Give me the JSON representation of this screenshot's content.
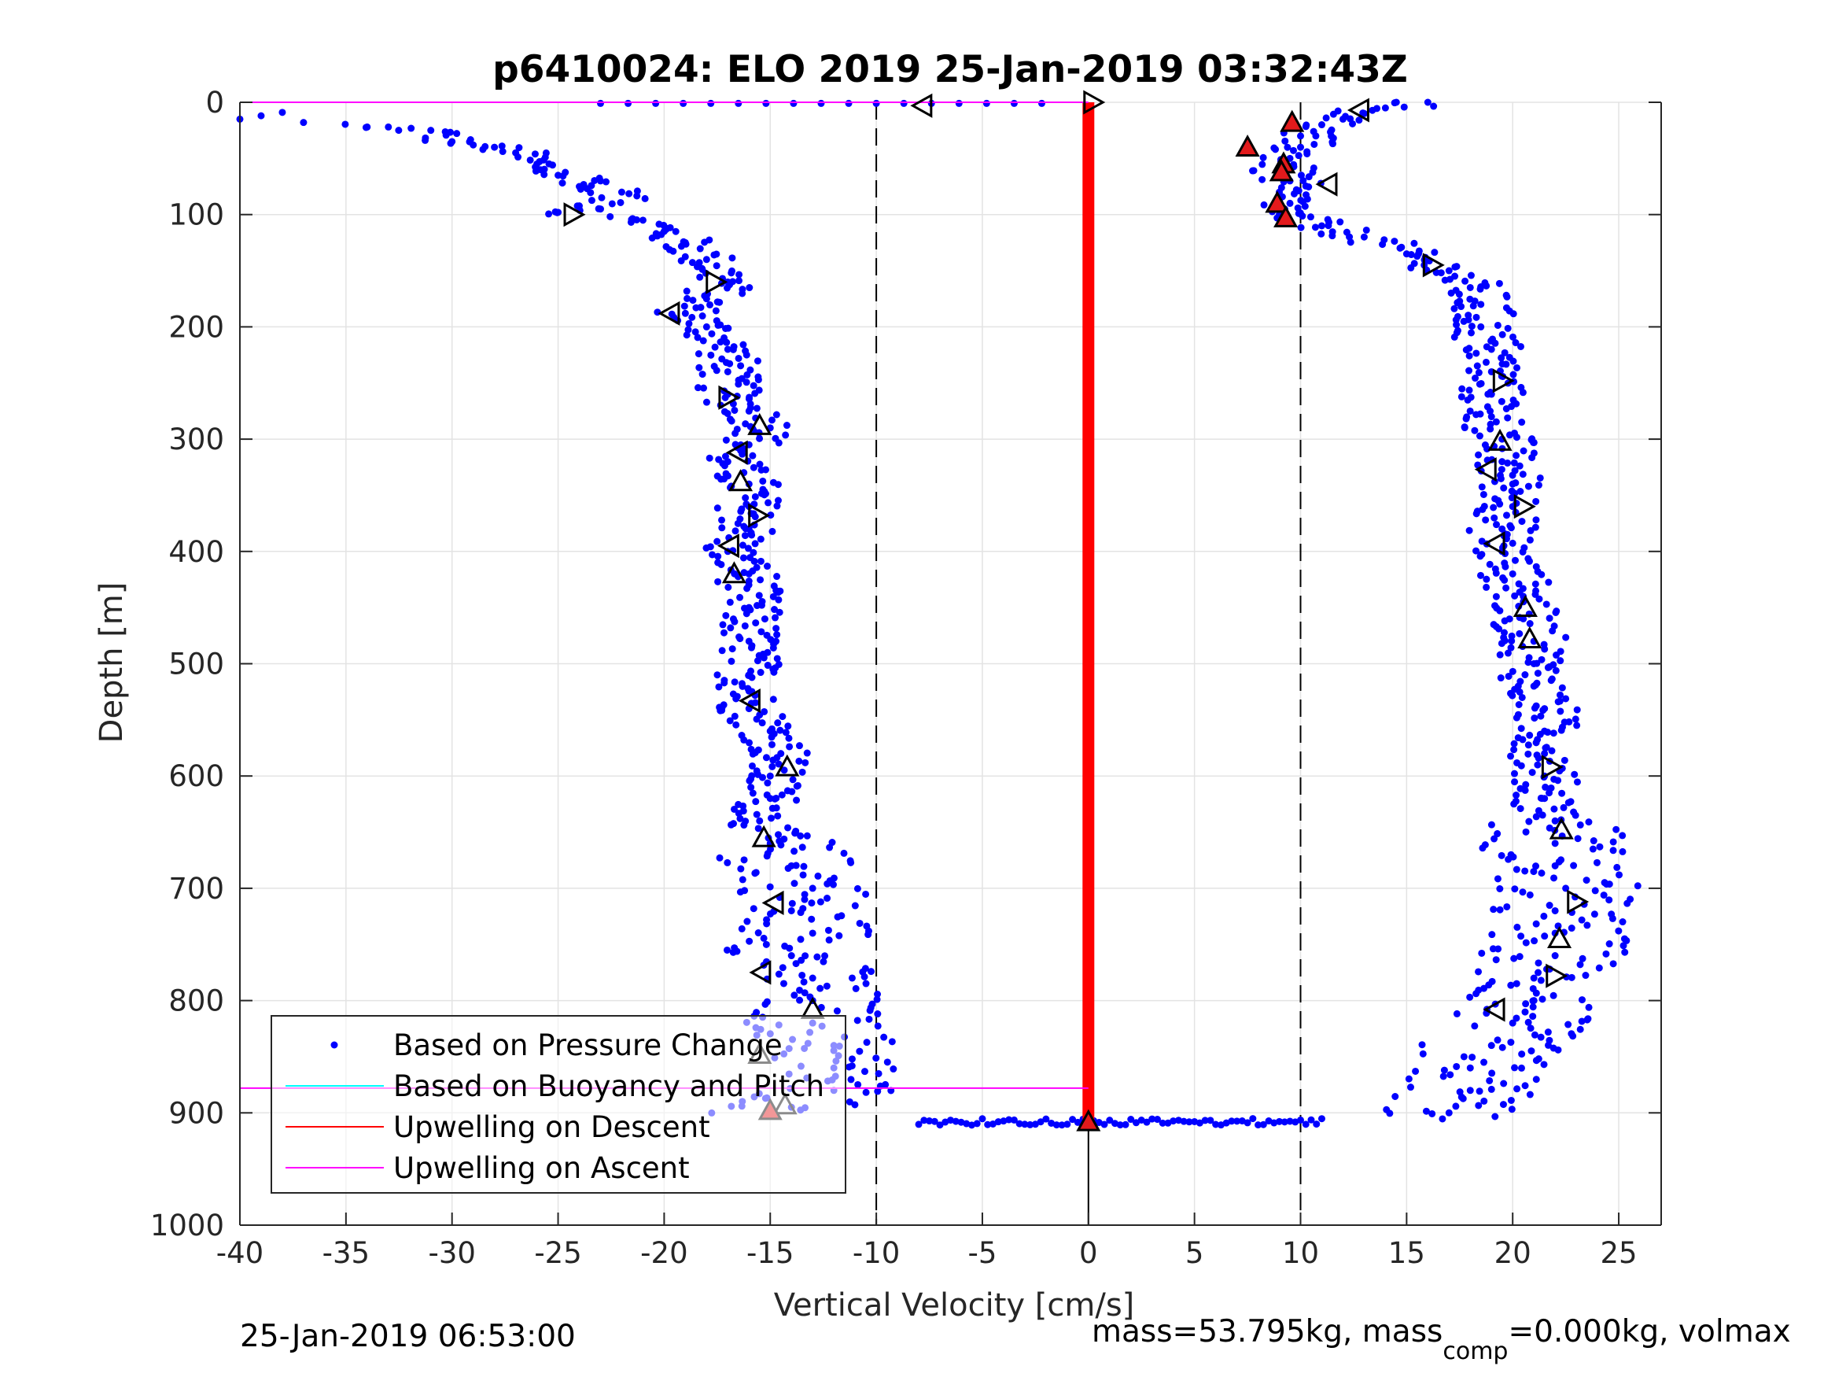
{
  "chart_data": {
    "type": "scatter",
    "title": "p6410024: ELO 2019 25-Jan-2019 03:32:43Z",
    "xlabel": "Vertical Velocity [cm/s]",
    "ylabel": "Depth [m]",
    "xlim": [
      -40,
      27
    ],
    "ylim": [
      0,
      1000
    ],
    "y_reversed": true,
    "grid": true,
    "x_ticks": [
      -40,
      -35,
      -30,
      -25,
      -20,
      -15,
      -10,
      -5,
      0,
      5,
      10,
      15,
      20,
      25
    ],
    "y_ticks": [
      0,
      100,
      200,
      300,
      400,
      500,
      600,
      700,
      800,
      900,
      1000
    ],
    "legend_position": "bottom-left",
    "colors": {
      "pressure": "#0000ff",
      "buoyancy": "#00ffff",
      "upwelling_descent": "#ff0000",
      "upwelling_ascent": "#ff00ff",
      "marker_fill_red": "#e31a1c"
    },
    "legend": [
      {
        "label": "Based on Pressure Change",
        "style": "dot",
        "color": "#0000ff"
      },
      {
        "label": "Based on Buoyancy and Pitch",
        "style": "line",
        "color": "#00ffff"
      },
      {
        "label": "Upwelling on Descent",
        "style": "line",
        "color": "#ff0000"
      },
      {
        "label": "Upwelling on Ascent",
        "style": "line",
        "color": "#ff00ff"
      }
    ],
    "reference_lines": {
      "vertical_dashed_x": [
        -10,
        10
      ],
      "vertical_solid_x": [
        0
      ]
    },
    "series": [
      {
        "name": "Based on Pressure Change",
        "descent_profile": {
          "points": [
            [
              -40,
              15
            ],
            [
              -39,
              12
            ],
            [
              -38,
              9
            ],
            [
              -37,
              18
            ],
            [
              -34,
              22
            ],
            [
              -33,
              22
            ],
            [
              -31,
              25
            ],
            [
              -30,
              35
            ],
            [
              -29,
              38
            ],
            [
              -28,
              40
            ],
            [
              -27,
              45
            ],
            [
              -26,
              55
            ],
            [
              -25,
              65
            ],
            [
              -24,
              75
            ],
            [
              -23,
              70
            ],
            [
              -22,
              80
            ],
            [
              -25,
              98
            ],
            [
              -23,
              95
            ],
            [
              -21,
              105
            ],
            [
              -20,
              115
            ],
            [
              -19,
              125
            ],
            [
              -18,
              140
            ],
            [
              -17,
              160
            ],
            [
              -18,
              175
            ],
            [
              -19,
              188
            ],
            [
              -18,
              200
            ],
            [
              -17,
              220
            ],
            [
              -17,
              240
            ],
            [
              -17,
              260
            ],
            [
              -16,
              275
            ],
            [
              -15,
              290
            ],
            [
              -16,
              305
            ],
            [
              -17,
              320
            ],
            [
              -16,
              340
            ],
            [
              -16,
              360
            ],
            [
              -16,
              380
            ],
            [
              -17,
              400
            ],
            [
              -16,
              420
            ],
            [
              -16,
              450
            ],
            [
              -16,
              480
            ],
            [
              -16,
              510
            ],
            [
              -16,
              540
            ],
            [
              -15,
              560
            ],
            [
              -14.5,
              580
            ],
            [
              -15,
              600
            ],
            [
              -15,
              620
            ],
            [
              -15.5,
              640
            ],
            [
              -15,
              660
            ],
            [
              -14,
              680
            ],
            [
              -13,
              700
            ],
            [
              -14,
              720
            ],
            [
              -13,
              740
            ],
            [
              -14,
              760
            ],
            [
              -13,
              780
            ],
            [
              -13,
              800
            ],
            [
              -13,
              820
            ],
            [
              -12,
              840
            ],
            [
              -12,
              860
            ],
            [
              -12,
              880
            ],
            [
              -14,
              895
            ],
            [
              -15,
              900
            ]
          ],
          "spread_cm_s": 1.5
        },
        "ascent_profile": {
          "points": [
            [
              9,
              100
            ],
            [
              9.5,
              90
            ],
            [
              9,
              80
            ],
            [
              9.5,
              70
            ],
            [
              9,
              60
            ],
            [
              9.5,
              50
            ],
            [
              10,
              40
            ],
            [
              10,
              30
            ],
            [
              11,
              20
            ],
            [
              12,
              15
            ],
            [
              13,
              10
            ],
            [
              14,
              5
            ],
            [
              16,
              0
            ],
            [
              11,
              110
            ],
            [
              13,
              120
            ],
            [
              15,
              135
            ],
            [
              17,
              150
            ],
            [
              18,
              165
            ],
            [
              18.5,
              180
            ],
            [
              18.5,
              200
            ],
            [
              19,
              220
            ],
            [
              19,
              240
            ],
            [
              19,
              260
            ],
            [
              19,
              280
            ],
            [
              19.5,
              300
            ],
            [
              19.5,
              320
            ],
            [
              20,
              340
            ],
            [
              20,
              360
            ],
            [
              19.5,
              380
            ],
            [
              19.5,
              400
            ],
            [
              20,
              420
            ],
            [
              20.5,
              440
            ],
            [
              20.5,
              460
            ],
            [
              21,
              480
            ],
            [
              21,
              500
            ],
            [
              21,
              520
            ],
            [
              21.5,
              540
            ],
            [
              21.5,
              560
            ],
            [
              21.5,
              580
            ],
            [
              21.5,
              600
            ],
            [
              21.5,
              620
            ],
            [
              22,
              640
            ],
            [
              22,
              660
            ],
            [
              22,
              680
            ],
            [
              22.5,
              700
            ],
            [
              22,
              720
            ],
            [
              22,
              740
            ],
            [
              22,
              760
            ],
            [
              21,
              780
            ],
            [
              21,
              800
            ],
            [
              20,
              820
            ],
            [
              19,
              840
            ],
            [
              18,
              860
            ],
            [
              18,
              880
            ],
            [
              17,
              900
            ]
          ],
          "spread_cm_s": 1.6
        },
        "bottom_segment": {
          "depth": 908,
          "x_range": [
            -8,
            11
          ]
        },
        "top_segment": {
          "depth": 1,
          "x_range": [
            -23,
            -1
          ]
        }
      },
      {
        "name": "Upwelling on Descent",
        "x": [
          0,
          0
        ],
        "y": [
          0,
          910
        ]
      },
      {
        "name": "Upwelling on Ascent",
        "segments": [
          {
            "x": [
              -40,
              0
            ],
            "y": [
              0,
              0
            ]
          },
          {
            "x": [
              -40,
              0
            ],
            "y": [
              878,
              878
            ]
          }
        ]
      }
    ],
    "markers": [
      {
        "x": 0.2,
        "y": 0,
        "shape": "tri-right",
        "fill": "none"
      },
      {
        "x": -7.8,
        "y": 3,
        "shape": "tri-left",
        "fill": "none"
      },
      {
        "x": 12.8,
        "y": 7,
        "shape": "tri-left",
        "fill": "none"
      },
      {
        "x": 9.6,
        "y": 18,
        "shape": "tri-up",
        "fill": "red"
      },
      {
        "x": 7.5,
        "y": 40,
        "shape": "tri-up",
        "fill": "red"
      },
      {
        "x": 9.2,
        "y": 55,
        "shape": "tri-up",
        "fill": "red"
      },
      {
        "x": 9.1,
        "y": 62,
        "shape": "tri-up",
        "fill": "red"
      },
      {
        "x": 11.3,
        "y": 73,
        "shape": "tri-left",
        "fill": "none"
      },
      {
        "x": 8.9,
        "y": 90,
        "shape": "tri-up",
        "fill": "red"
      },
      {
        "x": 9.3,
        "y": 103,
        "shape": "tri-up",
        "fill": "red"
      },
      {
        "x": -24.3,
        "y": 100,
        "shape": "tri-right",
        "fill": "none"
      },
      {
        "x": 16.2,
        "y": 145,
        "shape": "tri-right",
        "fill": "none"
      },
      {
        "x": -17.6,
        "y": 160,
        "shape": "tri-right",
        "fill": "none"
      },
      {
        "x": -19.7,
        "y": 188,
        "shape": "tri-left",
        "fill": "none"
      },
      {
        "x": 19.5,
        "y": 248,
        "shape": "tri-right",
        "fill": "none"
      },
      {
        "x": -17.0,
        "y": 263,
        "shape": "tri-right",
        "fill": "none"
      },
      {
        "x": -15.5,
        "y": 288,
        "shape": "tri-up",
        "fill": "none"
      },
      {
        "x": 19.4,
        "y": 302,
        "shape": "tri-up",
        "fill": "none"
      },
      {
        "x": -16.5,
        "y": 312,
        "shape": "tri-left",
        "fill": "none"
      },
      {
        "x": 18.8,
        "y": 327,
        "shape": "tri-left",
        "fill": "none"
      },
      {
        "x": -16.4,
        "y": 338,
        "shape": "tri-up",
        "fill": "none"
      },
      {
        "x": 20.5,
        "y": 360,
        "shape": "tri-right",
        "fill": "none"
      },
      {
        "x": -15.6,
        "y": 368,
        "shape": "tri-right",
        "fill": "none"
      },
      {
        "x": 19.2,
        "y": 393,
        "shape": "tri-left",
        "fill": "none"
      },
      {
        "x": -16.9,
        "y": 395,
        "shape": "tri-left",
        "fill": "none"
      },
      {
        "x": -16.7,
        "y": 420,
        "shape": "tri-up",
        "fill": "none"
      },
      {
        "x": 20.6,
        "y": 450,
        "shape": "tri-up",
        "fill": "none"
      },
      {
        "x": 20.8,
        "y": 478,
        "shape": "tri-up",
        "fill": "none"
      },
      {
        "x": -15.9,
        "y": 533,
        "shape": "tri-left",
        "fill": "none"
      },
      {
        "x": 21.8,
        "y": 592,
        "shape": "tri-right",
        "fill": "none"
      },
      {
        "x": -14.2,
        "y": 592,
        "shape": "tri-up",
        "fill": "none"
      },
      {
        "x": 22.3,
        "y": 648,
        "shape": "tri-up",
        "fill": "none"
      },
      {
        "x": -15.3,
        "y": 655,
        "shape": "tri-up",
        "fill": "none"
      },
      {
        "x": 23.0,
        "y": 712,
        "shape": "tri-right",
        "fill": "none"
      },
      {
        "x": -14.8,
        "y": 713,
        "shape": "tri-left",
        "fill": "none"
      },
      {
        "x": 22.2,
        "y": 745,
        "shape": "tri-up",
        "fill": "none"
      },
      {
        "x": -15.4,
        "y": 775,
        "shape": "tri-left",
        "fill": "none"
      },
      {
        "x": 22.0,
        "y": 778,
        "shape": "tri-right",
        "fill": "none"
      },
      {
        "x": 19.2,
        "y": 808,
        "shape": "tri-left",
        "fill": "none"
      },
      {
        "x": -13.0,
        "y": 808,
        "shape": "tri-up",
        "fill": "none"
      },
      {
        "x": -15.5,
        "y": 848,
        "shape": "tri-up",
        "fill": "none"
      },
      {
        "x": -14.3,
        "y": 893,
        "shape": "tri-up",
        "fill": "none"
      },
      {
        "x": -15.0,
        "y": 898,
        "shape": "tri-up",
        "fill": "red"
      },
      {
        "x": 0.0,
        "y": 908,
        "shape": "tri-up",
        "fill": "red"
      }
    ]
  },
  "footer": {
    "timestamp": "25-Jan-2019 06:53:00",
    "mass_info_prefix": "mass=53.795kg, mass",
    "mass_info_sub": "comp",
    "mass_info_suffix": "=0.000kg, volmax"
  }
}
